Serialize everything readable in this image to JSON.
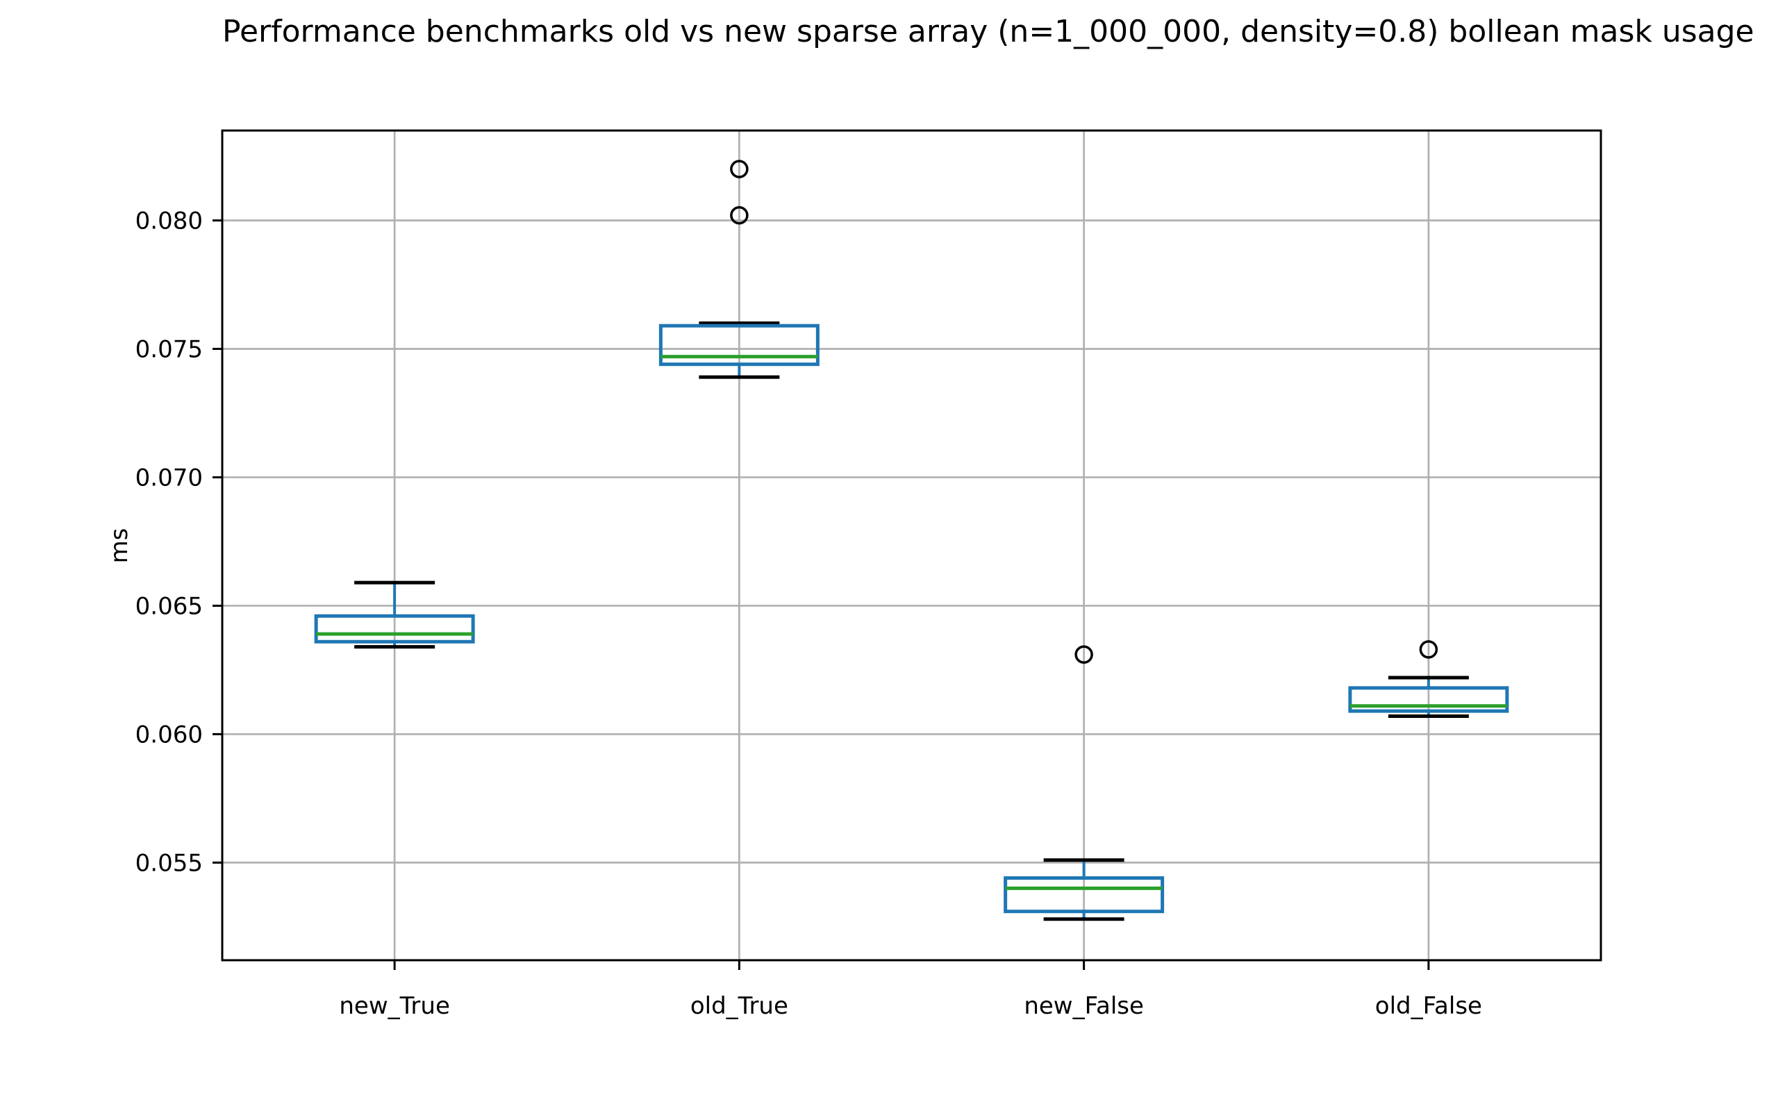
{
  "chart_data": {
    "type": "box",
    "title": "Performance benchmarks old vs new sparse array (n=1_000_000, density=0.8) bollean mask usage",
    "ylabel": "ms",
    "xlabel": "",
    "categories": [
      "new_True",
      "old_True",
      "new_False",
      "old_False"
    ],
    "yticks": [
      0.055,
      0.06,
      0.065,
      0.07,
      0.075,
      0.08
    ],
    "ytick_labels": [
      "0.055",
      "0.060",
      "0.065",
      "0.070",
      "0.075",
      "0.080"
    ],
    "ylim": [
      0.0512,
      0.0835
    ],
    "grid": true,
    "legend": "none",
    "series": [
      {
        "label": "new_True",
        "whislo": 0.0634,
        "q1": 0.0636,
        "med": 0.0639,
        "q3": 0.0646,
        "whishi": 0.0659,
        "fliers": []
      },
      {
        "label": "old_True",
        "whislo": 0.0739,
        "q1": 0.0744,
        "med": 0.0747,
        "q3": 0.0759,
        "whishi": 0.076,
        "fliers": [
          0.0802,
          0.082
        ]
      },
      {
        "label": "new_False",
        "whislo": 0.0528,
        "q1": 0.0531,
        "med": 0.054,
        "q3": 0.0544,
        "whishi": 0.0551,
        "fliers": [
          0.0631
        ]
      },
      {
        "label": "old_False",
        "whislo": 0.0607,
        "q1": 0.0609,
        "med": 0.0611,
        "q3": 0.0618,
        "whishi": 0.0622,
        "fliers": [
          0.0633
        ]
      }
    ],
    "colors": {
      "box": "#1f77b4",
      "whisker": "#1f77b4",
      "cap": "#000000",
      "median": "#2ca02c",
      "flier": "#000000",
      "grid": "#b0b0b0",
      "spine": "#000000",
      "text": "#000000",
      "background": "#ffffff"
    }
  }
}
